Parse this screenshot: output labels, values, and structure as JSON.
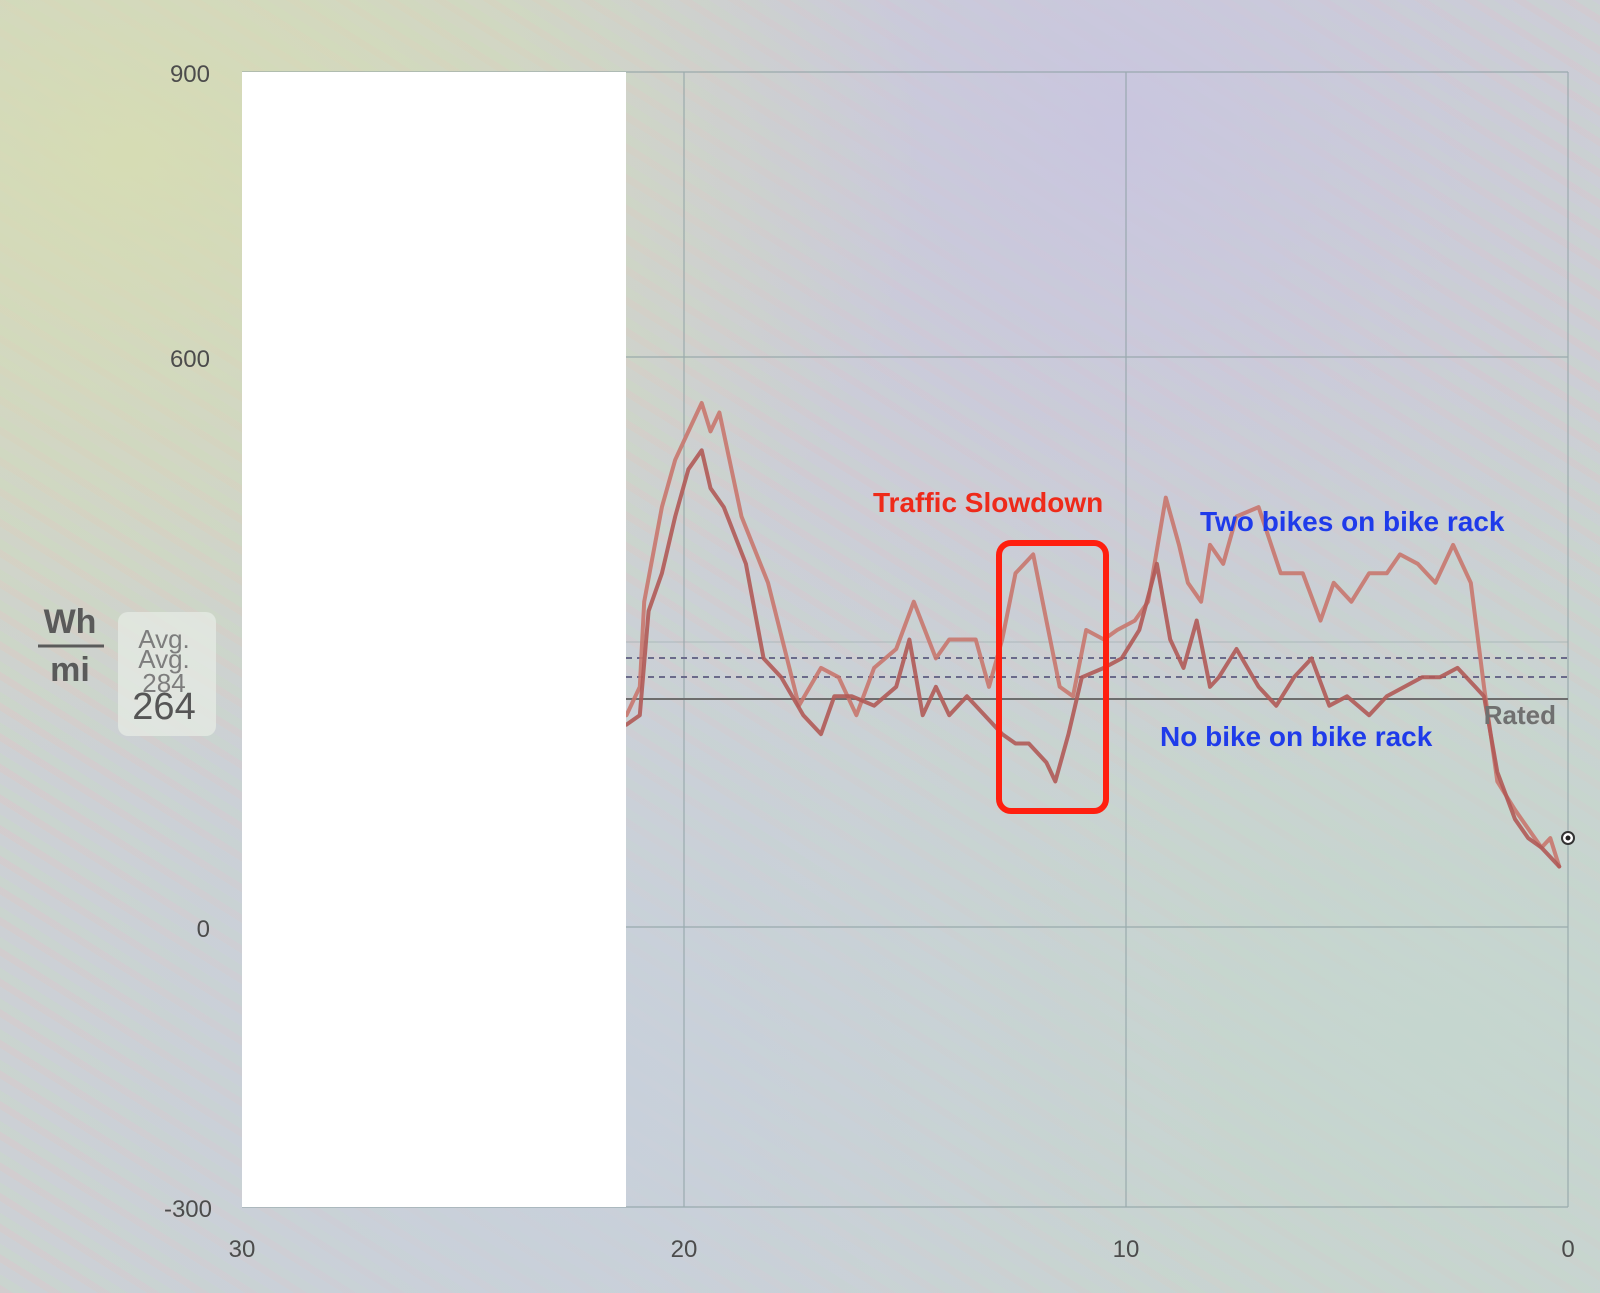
{
  "chart_data": {
    "type": "line",
    "xlim": [
      30,
      0
    ],
    "ylim": [
      -300,
      900
    ],
    "x_ticks": [
      "30",
      "20",
      "10",
      "0"
    ],
    "y_ticks": [
      "900",
      "600",
      "0",
      "-300"
    ],
    "ylabel_top": "Wh",
    "ylabel_bottom": "mi",
    "avg_label_1": "Avg.",
    "avg_label_2": "Avg.",
    "avg_value_1": "284",
    "avg_value_2": "264",
    "avg_lines": [
      284,
      264
    ],
    "rated_label": "Rated",
    "rated_value": 240,
    "series": [
      {
        "name": "Two bikes on bike rack",
        "color": "#c8776e",
        "x": [
          21.3,
          21.0,
          20.9,
          20.5,
          20.2,
          19.9,
          19.6,
          19.4,
          19.2,
          18.7,
          18.1,
          17.4,
          16.9,
          16.5,
          16.1,
          15.7,
          15.2,
          14.8,
          14.3,
          14.0,
          13.4,
          13.1,
          12.8,
          12.5,
          12.1,
          11.8,
          11.5,
          11.2,
          10.9,
          10.5,
          10.2,
          9.8,
          9.5,
          9.1,
          8.8,
          8.6,
          8.3,
          8.1,
          7.8,
          7.5,
          7.0,
          6.5,
          6.0,
          5.6,
          5.3,
          4.9,
          4.5,
          4.1,
          3.8,
          3.4,
          3.0,
          2.6,
          2.2,
          1.9,
          1.6,
          1.2,
          0.9,
          0.6,
          0.4,
          0.2
        ],
        "y": [
          220,
          250,
          340,
          440,
          490,
          520,
          550,
          520,
          540,
          430,
          360,
          230,
          270,
          260,
          220,
          270,
          290,
          340,
          280,
          300,
          300,
          250,
          300,
          370,
          390,
          320,
          250,
          240,
          310,
          300,
          310,
          320,
          340,
          450,
          400,
          360,
          340,
          400,
          380,
          430,
          440,
          370,
          370,
          320,
          360,
          340,
          370,
          370,
          390,
          380,
          360,
          400,
          360,
          250,
          150,
          120,
          100,
          80,
          90,
          60
        ]
      },
      {
        "name": "No bike on bike rack",
        "color": "#b05a57",
        "x": [
          21.3,
          21.0,
          20.8,
          20.5,
          20.2,
          19.9,
          19.6,
          19.4,
          19.1,
          18.6,
          18.2,
          17.8,
          17.3,
          16.9,
          16.6,
          16.2,
          15.7,
          15.2,
          14.9,
          14.6,
          14.3,
          14.0,
          13.6,
          13.2,
          12.8,
          12.5,
          12.2,
          11.8,
          11.6,
          11.3,
          11.0,
          10.5,
          10.1,
          9.7,
          9.3,
          9.0,
          8.7,
          8.4,
          8.1,
          7.9,
          7.5,
          7.0,
          6.6,
          6.2,
          5.8,
          5.4,
          5.0,
          4.5,
          4.1,
          3.7,
          3.3,
          2.9,
          2.5,
          2.1,
          1.9,
          1.6,
          1.2,
          0.9,
          0.6,
          0.4,
          0.2
        ],
        "y": [
          210,
          220,
          330,
          370,
          430,
          480,
          500,
          460,
          440,
          380,
          280,
          260,
          220,
          200,
          240,
          240,
          230,
          250,
          300,
          220,
          250,
          220,
          240,
          220,
          200,
          190,
          190,
          170,
          150,
          200,
          260,
          270,
          280,
          310,
          380,
          300,
          270,
          320,
          250,
          260,
          290,
          250,
          230,
          260,
          280,
          230,
          240,
          220,
          240,
          250,
          260,
          260,
          270,
          250,
          240,
          160,
          110,
          90,
          80,
          70,
          60
        ]
      }
    ],
    "annotations": [
      {
        "text": "Traffic Slowdown",
        "color": "#ee2a1a"
      },
      {
        "text": "Two bikes on bike rack",
        "color": "#1f3bea"
      },
      {
        "text": "No bike on bike rack",
        "color": "#1f3bea"
      }
    ]
  }
}
